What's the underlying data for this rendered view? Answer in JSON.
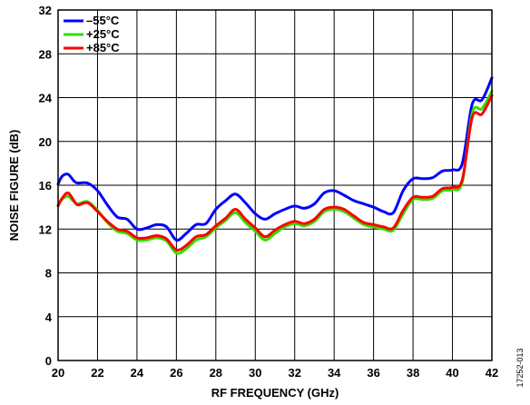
{
  "chart_data": {
    "type": "line",
    "xlabel": "RF FREQUENCY (GHz)",
    "ylabel": "NOISE FIGURE (dB)",
    "xlim": [
      20,
      42
    ],
    "ylim": [
      0,
      32
    ],
    "xticks": [
      "20",
      "22",
      "24",
      "26",
      "28",
      "30",
      "32",
      "34",
      "36",
      "38",
      "40",
      "42"
    ],
    "yticks": [
      "0",
      "4",
      "8",
      "12",
      "16",
      "20",
      "24",
      "28",
      "32"
    ],
    "grid": true,
    "legend_position": "top-left",
    "series": [
      {
        "name": "–55°C",
        "color": "#0000ff",
        "x": [
          20,
          20.2,
          20.5,
          20.8,
          21,
          21.5,
          22,
          22.5,
          23,
          23.5,
          24,
          24.5,
          25,
          25.5,
          26,
          26.5,
          27,
          27.5,
          28,
          28.5,
          29,
          29.5,
          30,
          30.5,
          31,
          31.5,
          32,
          32.5,
          33,
          33.5,
          34,
          34.5,
          35,
          35.5,
          36,
          36.5,
          37,
          37.5,
          38,
          38.5,
          39,
          39.5,
          40,
          40.5,
          41,
          41.5,
          42
        ],
        "y": [
          16.1,
          16.8,
          17.0,
          16.4,
          16.2,
          16.2,
          15.5,
          14.2,
          13.1,
          12.9,
          12.0,
          12.1,
          12.4,
          12.2,
          11.0,
          11.6,
          12.4,
          12.5,
          13.8,
          14.6,
          15.2,
          14.4,
          13.4,
          12.9,
          13.4,
          13.8,
          14.1,
          13.9,
          14.3,
          15.3,
          15.5,
          15.1,
          14.6,
          14.3,
          14.0,
          13.6,
          13.5,
          15.5,
          16.6,
          16.6,
          16.7,
          17.3,
          17.4,
          18.0,
          23.4,
          23.8,
          25.8
        ]
      },
      {
        "name": "+25°C",
        "color": "#33dd00",
        "x": [
          20,
          20.2,
          20.5,
          20.8,
          21,
          21.5,
          22,
          22.5,
          23,
          23.5,
          24,
          24.5,
          25,
          25.5,
          26,
          26.5,
          27,
          27.5,
          28,
          28.5,
          29,
          29.5,
          30,
          30.5,
          31,
          31.5,
          32,
          32.5,
          33,
          33.5,
          34,
          34.5,
          35,
          35.5,
          36,
          36.5,
          37,
          37.5,
          38,
          38.5,
          39,
          39.5,
          40,
          40.5,
          41,
          41.5,
          42
        ],
        "y": [
          14.2,
          14.7,
          15.0,
          14.5,
          14.3,
          14.5,
          13.7,
          12.6,
          11.8,
          11.6,
          11.0,
          11.0,
          11.2,
          10.9,
          9.8,
          10.2,
          11.0,
          11.3,
          12.1,
          12.8,
          13.5,
          12.6,
          11.8,
          11.0,
          11.6,
          12.2,
          12.5,
          12.3,
          12.7,
          13.6,
          13.8,
          13.6,
          13.0,
          12.4,
          12.2,
          12.0,
          11.9,
          13.4,
          14.7,
          14.7,
          14.8,
          15.5,
          15.6,
          16.3,
          22.6,
          23.0,
          24.6
        ]
      },
      {
        "name": "+85°C",
        "color": "#ff0000",
        "x": [
          20,
          20.2,
          20.5,
          20.8,
          21,
          21.5,
          22,
          22.5,
          23,
          23.5,
          24,
          24.5,
          25,
          25.5,
          26,
          26.5,
          27,
          27.5,
          28,
          28.5,
          29,
          29.5,
          30,
          30.5,
          31,
          31.5,
          32,
          32.5,
          33,
          33.5,
          34,
          34.5,
          35,
          35.5,
          36,
          36.5,
          37,
          37.5,
          38,
          38.5,
          39,
          39.5,
          40,
          40.5,
          41,
          41.5,
          42
        ],
        "y": [
          14.1,
          14.8,
          15.3,
          14.6,
          14.2,
          14.4,
          13.6,
          12.7,
          12.0,
          11.8,
          11.2,
          11.2,
          11.4,
          11.1,
          10.1,
          10.5,
          11.3,
          11.5,
          12.3,
          13.0,
          13.8,
          12.9,
          12.1,
          11.3,
          11.9,
          12.4,
          12.7,
          12.5,
          12.9,
          13.8,
          14.0,
          13.8,
          13.2,
          12.6,
          12.4,
          12.2,
          12.1,
          13.7,
          14.9,
          14.9,
          15.0,
          15.7,
          15.8,
          16.5,
          22.2,
          22.5,
          24.2
        ]
      }
    ]
  },
  "figure_id": "17252-013"
}
